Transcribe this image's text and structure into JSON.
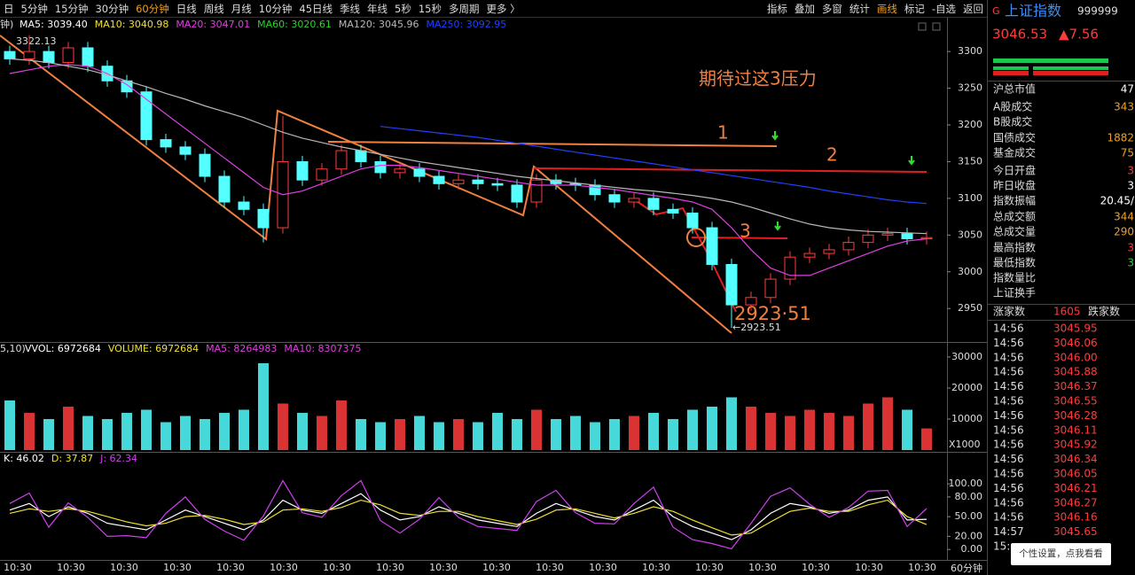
{
  "toolbar": {
    "periods": [
      "日",
      "5分钟",
      "15分钟",
      "30分钟",
      "60分钟",
      "日线",
      "周线",
      "月线",
      "10分钟",
      "45日线",
      "季线",
      "年线",
      "5秒",
      "15秒",
      "多周期",
      "更多 〉"
    ],
    "active_period": "60分钟",
    "tools": [
      "指标",
      "叠加",
      "多窗",
      "统计",
      "画线",
      "标记",
      "-自选",
      "返回"
    ],
    "active_tool": "画线"
  },
  "chart_data": [
    {
      "type": "candlestick",
      "legend_prefix": "钟)",
      "legend": [
        {
          "text": "MA5: 3039.40",
          "color": "#ffffff"
        },
        {
          "text": "MA10: 3040.98",
          "color": "#f0e030"
        },
        {
          "text": "MA20: 3047.01",
          "color": "#e040e0"
        },
        {
          "text": "MA60: 3020.61",
          "color": "#30d030"
        },
        {
          "text": "MA120: 3045.96",
          "color": "#b8b8b8"
        },
        {
          "text": "MA250: 3092.95",
          "color": "#2040ff"
        }
      ],
      "up_color": "#ff3c3c",
      "down_color": "#54ffff",
      "open": [
        3300,
        3290,
        3300,
        3285,
        3305,
        3280,
        3260,
        3245,
        3180,
        3170,
        3160,
        3130,
        3095,
        3085,
        3060,
        3150,
        3125,
        3140,
        3165,
        3150,
        3135,
        3140,
        3130,
        3120,
        3125,
        3120,
        3118,
        3095,
        3125,
        3120,
        3118,
        3105,
        3095,
        3100,
        3085,
        3080,
        3060,
        3010,
        2955,
        2965,
        2990,
        3020,
        3025,
        3030,
        3040,
        3050,
        3052,
        3045
      ],
      "high": [
        3308,
        3322.13,
        3308,
        3313,
        3313,
        3288,
        3268,
        3253,
        3188,
        3178,
        3168,
        3138,
        3103,
        3093,
        3212,
        3158,
        3148,
        3173,
        3173,
        3158,
        3148,
        3148,
        3138,
        3133,
        3133,
        3128,
        3126,
        3133,
        3133,
        3128,
        3126,
        3113,
        3108,
        3108,
        3093,
        3088,
        3068,
        3018,
        2973,
        2998,
        3028,
        3033,
        3038,
        3048,
        3058,
        3060,
        3060,
        3055
      ],
      "low": [
        3282,
        3282,
        3277,
        3277,
        3272,
        3252,
        3237,
        3172,
        3162,
        3152,
        3122,
        3087,
        3077,
        3040,
        3052,
        3117,
        3117,
        3132,
        3142,
        3127,
        3127,
        3122,
        3112,
        3112,
        3112,
        3110,
        3087,
        3087,
        3112,
        3110,
        3097,
        3087,
        3087,
        3077,
        3072,
        3052,
        3002,
        2923.51,
        2947,
        2957,
        2982,
        3012,
        3017,
        3022,
        3032,
        3042,
        3037,
        3037
      ],
      "close": [
        3290,
        3300,
        3285,
        3305,
        3280,
        3260,
        3245,
        3180,
        3170,
        3160,
        3130,
        3095,
        3085,
        3060,
        3150,
        3125,
        3140,
        3165,
        3150,
        3135,
        3140,
        3130,
        3120,
        3125,
        3120,
        3118,
        3095,
        3125,
        3120,
        3118,
        3105,
        3095,
        3100,
        3085,
        3080,
        3060,
        3010,
        2955,
        2965,
        2990,
        3020,
        3025,
        3030,
        3040,
        3050,
        3052,
        3045,
        3046.53
      ],
      "lines": [
        {
          "color": "#e040e0",
          "values": [
            3270,
            3275,
            3280,
            3282,
            3280,
            3270,
            3255,
            3235,
            3215,
            3195,
            3175,
            3155,
            3135,
            3115,
            3105,
            3110,
            3120,
            3130,
            3140,
            3145,
            3145,
            3142,
            3138,
            3134,
            3130,
            3126,
            3122,
            3118,
            3118,
            3118,
            3115,
            3112,
            3108,
            3104,
            3100,
            3095,
            3085,
            3060,
            3030,
            3005,
            2995,
            2995,
            3005,
            3015,
            3025,
            3035,
            3042,
            3045
          ]
        },
        {
          "color": "#b8b8b8",
          "values": [
            3290,
            3288,
            3285,
            3280,
            3275,
            3268,
            3260,
            3252,
            3243,
            3235,
            3226,
            3218,
            3210,
            3200,
            3190,
            3182,
            3176,
            3170,
            3165,
            3160,
            3155,
            3150,
            3146,
            3142,
            3138,
            3134,
            3130,
            3127,
            3124,
            3121,
            3118,
            3115,
            3112,
            3110,
            3107,
            3104,
            3100,
            3095,
            3088,
            3080,
            3072,
            3065,
            3060,
            3057,
            3055,
            3054,
            3053,
            3052
          ]
        },
        {
          "color": "#2040ff",
          "values": [
            null,
            null,
            null,
            null,
            null,
            null,
            null,
            null,
            null,
            null,
            null,
            null,
            null,
            null,
            null,
            null,
            null,
            null,
            null,
            3198,
            3195,
            3192,
            3189,
            3186,
            3183,
            3179,
            3175,
            3171,
            3167,
            3163,
            3159,
            3155,
            3151,
            3147,
            3143,
            3139,
            3135,
            3131,
            3127,
            3123,
            3119,
            3115,
            3110,
            3106,
            3102,
            3098,
            3095,
            3093
          ]
        }
      ],
      "ylim": [
        2902,
        3346
      ],
      "yticks": [
        3300,
        3250,
        3200,
        3150,
        3100,
        3050,
        3000,
        2950
      ],
      "annotations": {
        "note": "期待过这3压力",
        "line1": "1",
        "line2": "2",
        "line3": "3",
        "low_big": "2923·51",
        "low_mark": "←2923.51",
        "high_mark": "3322.13"
      }
    },
    {
      "type": "bar",
      "legend_prefix": "5,10)",
      "legend": [
        {
          "text": "VVOL: 6972684",
          "color": "#ffffff"
        },
        {
          "text": "VOLUME: 6972684",
          "color": "#f0e030"
        },
        {
          "text": "MA5: 8264983",
          "color": "#e040e0"
        },
        {
          "text": "MA10: 8307375",
          "color": "#e040e0"
        }
      ],
      "values": [
        16000,
        12000,
        10000,
        14000,
        11000,
        10000,
        12000,
        13000,
        9000,
        11000,
        10000,
        12000,
        13000,
        28000,
        15000,
        12000,
        11000,
        16000,
        10000,
        9000,
        10000,
        11000,
        9000,
        10000,
        9000,
        12000,
        10000,
        13000,
        10000,
        11000,
        9000,
        10000,
        11000,
        12000,
        10000,
        13000,
        14000,
        17000,
        14000,
        12000,
        11000,
        13000,
        12000,
        11000,
        15000,
        17000,
        13000,
        6972.684
      ],
      "ylim": [
        0,
        33700
      ],
      "yticks": [
        30000,
        20000,
        10000
      ],
      "unit_label": "X1000"
    },
    {
      "type": "line",
      "legend": [
        {
          "text": "K: 46.02",
          "color": "#ffffff"
        },
        {
          "text": "D: 37.87",
          "color": "#f0e030"
        },
        {
          "text": "J: 62.34",
          "color": "#d040f0"
        }
      ],
      "series": [
        {
          "color": "#ffffff",
          "values": [
            60,
            70,
            50,
            65,
            55,
            40,
            35,
            30,
            45,
            60,
            50,
            40,
            30,
            45,
            75,
            60,
            55,
            70,
            85,
            60,
            45,
            50,
            65,
            55,
            45,
            40,
            35,
            55,
            70,
            60,
            50,
            45,
            60,
            75,
            50,
            35,
            25,
            15,
            30,
            55,
            70,
            65,
            55,
            60,
            75,
            80,
            45,
            46.02
          ]
        },
        {
          "color": "#f0e030",
          "values": [
            55,
            62,
            58,
            62,
            58,
            50,
            42,
            36,
            40,
            50,
            52,
            46,
            38,
            42,
            60,
            62,
            58,
            64,
            75,
            68,
            55,
            52,
            58,
            58,
            50,
            44,
            38,
            46,
            60,
            62,
            55,
            48,
            55,
            65,
            58,
            45,
            33,
            22,
            25,
            42,
            58,
            63,
            58,
            58,
            68,
            75,
            50,
            37.87
          ]
        },
        {
          "color": "#d040f0",
          "values": [
            70,
            86,
            34,
            71,
            49,
            20,
            21,
            18,
            55,
            80,
            46,
            28,
            14,
            51,
            105,
            56,
            49,
            82,
            105,
            44,
            25,
            46,
            79,
            49,
            35,
            32,
            29,
            73,
            90,
            56,
            40,
            39,
            70,
            95,
            34,
            15,
            9,
            1,
            40,
            81,
            94,
            69,
            49,
            64,
            89,
            90,
            35,
            62.34
          ]
        }
      ],
      "ylim": [
        -20,
        142
      ],
      "yticks": [
        {
          "value": 100,
          "label": "100.00"
        },
        {
          "value": 80,
          "label": "80.00"
        },
        {
          "value": 50,
          "label": "50.00"
        },
        {
          "value": 20,
          "label": "20.00"
        },
        {
          "value": 0,
          "label": "0.00"
        }
      ]
    }
  ],
  "x_axis": {
    "labels": [
      "10:30",
      "10:30",
      "10:30",
      "10:30",
      "10:30",
      "10:30",
      "10:30",
      "10:30",
      "10:30",
      "10:30",
      "10:30",
      "10:30",
      "10:30",
      "10:30",
      "10:30",
      "10:30",
      "10:30",
      "10:30"
    ],
    "period": "60分钟"
  },
  "quote_panel": {
    "flag": "G",
    "name": "上证指数",
    "code": "999999",
    "price": "3046.53",
    "change": "▲7.56",
    "fields": [
      {
        "label": "沪总市值",
        "value": "47",
        "color": "#ffffff"
      },
      {
        "label": "A股成交",
        "value": "343",
        "color": "#f0a020"
      },
      {
        "label": "B股成交"
      },
      {
        "label": "国债成交",
        "value": "1882",
        "color": "#f0a020"
      },
      {
        "label": "基金成交",
        "value": "75",
        "color": "#f0a020"
      },
      {
        "label": "今日开盘",
        "value": "3",
        "color": "#ff3c3c"
      },
      {
        "label": "昨日收盘",
        "value": "3",
        "color": "#ffffff"
      },
      {
        "label": "指数振幅",
        "value": "20.45/",
        "color": "#ffffff"
      },
      {
        "label": "总成交额",
        "value": "344",
        "color": "#f0a020"
      },
      {
        "label": "总成交量",
        "value": "290",
        "color": "#f0a020"
      },
      {
        "label": "最高指数",
        "value": "3",
        "color": "#ff3c3c"
      },
      {
        "label": "最低指数",
        "value": "3",
        "color": "#30d030"
      },
      {
        "label": "指数量比"
      },
      {
        "label": "上证换手"
      }
    ],
    "breadth": {
      "up_label": "涨家数",
      "up_count": 1605,
      "down_label": "跌家数"
    },
    "ticks": [
      {
        "time": "14:56",
        "price": "3045.95"
      },
      {
        "time": "14:56",
        "price": "3046.06"
      },
      {
        "time": "14:56",
        "price": "3046.00"
      },
      {
        "time": "14:56",
        "price": "3045.88"
      },
      {
        "time": "14:56",
        "price": "3046.37"
      },
      {
        "time": "14:56",
        "price": "3046.55"
      },
      {
        "time": "14:56",
        "price": "3046.28"
      },
      {
        "time": "14:56",
        "price": "3046.11"
      },
      {
        "time": "14:56",
        "price": "3045.92"
      },
      {
        "time": "14:56",
        "price": "3046.34"
      },
      {
        "time": "14:56",
        "price": "3046.05"
      },
      {
        "time": "14:56",
        "price": "3046.21"
      },
      {
        "time": "14:56",
        "price": "3046.27"
      },
      {
        "time": "14:56",
        "price": "3046.16"
      },
      {
        "time": "14:57",
        "price": "3045.65"
      },
      {
        "time": "15:"
      }
    ],
    "popup": "个性设置，点我看看"
  }
}
